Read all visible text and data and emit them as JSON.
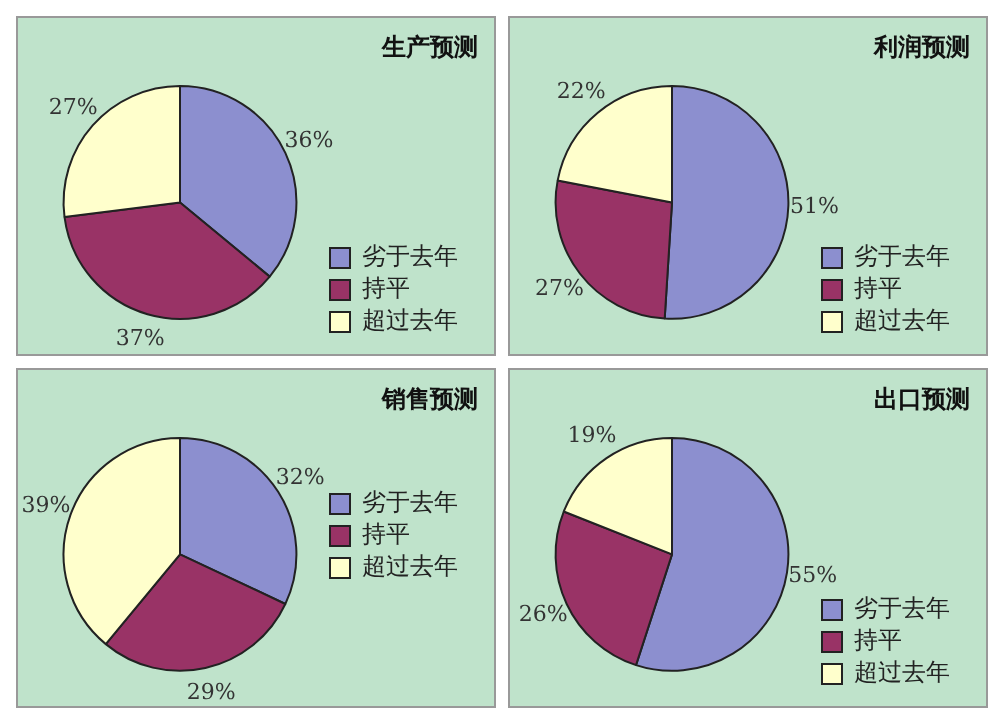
{
  "chart_data": [
    {
      "type": "pie",
      "title": "生产预测",
      "categories": [
        "劣于去年",
        "持平",
        "超过去年"
      ],
      "values": [
        36,
        37,
        27
      ],
      "value_labels": [
        "36%",
        "37%",
        "27%"
      ],
      "colors": [
        "#8c8fcf",
        "#993366",
        "#ffffcc"
      ],
      "legend": "bottom right"
    },
    {
      "type": "pie",
      "title": "利润预测",
      "categories": [
        "劣于去年",
        "持平",
        "超过去年"
      ],
      "values": [
        51,
        27,
        22
      ],
      "value_labels": [
        "51%",
        "27%",
        "22%"
      ],
      "colors": [
        "#8c8fcf",
        "#993366",
        "#ffffcc"
      ],
      "legend": "bottom right"
    },
    {
      "type": "pie",
      "title": "销售预测",
      "categories": [
        "劣于去年",
        "持平",
        "超过去年"
      ],
      "values": [
        32,
        29,
        39
      ],
      "value_labels": [
        "32%",
        "29%",
        "39%"
      ],
      "colors": [
        "#8c8fcf",
        "#993366",
        "#ffffcc"
      ],
      "legend": "right"
    },
    {
      "type": "pie",
      "title": "出口预测",
      "categories": [
        "劣于去年",
        "持平",
        "超过去年"
      ],
      "values": [
        55,
        26,
        19
      ],
      "value_labels": [
        "55%",
        "26%",
        "19%"
      ],
      "colors": [
        "#8c8fcf",
        "#993366",
        "#ffffcc"
      ],
      "legend": "bottom right"
    }
  ]
}
